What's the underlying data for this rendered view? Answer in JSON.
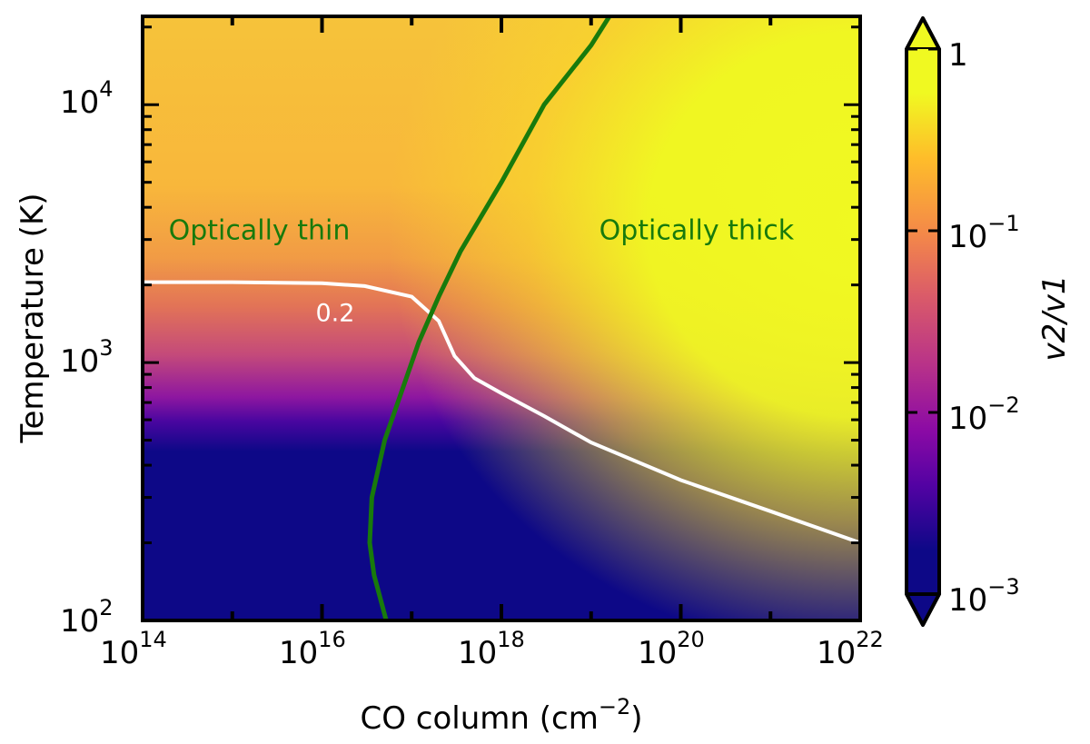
{
  "chart_data": {
    "type": "heatmap",
    "title": "",
    "xlabel": "CO column (cm",
    "xlabel_exponent": "−2",
    "xlabel_close": ")",
    "ylabel": "Temperature (K)",
    "x_scale": "log",
    "y_scale": "log",
    "xlim": [
      100000000000000.0,
      1e+22
    ],
    "ylim": [
      100,
      22000
    ],
    "x_ticks": [
      {
        "value": 100000000000000.0,
        "base": "10",
        "exp": "14"
      },
      {
        "value": 1e+16,
        "base": "10",
        "exp": "16"
      },
      {
        "value": 1e+18,
        "base": "10",
        "exp": "18"
      },
      {
        "value": 1e+20,
        "base": "10",
        "exp": "20"
      },
      {
        "value": 1e+22,
        "base": "10",
        "exp": "22"
      }
    ],
    "y_ticks": [
      {
        "value": 100,
        "base": "10",
        "exp": "2"
      },
      {
        "value": 1000,
        "base": "10",
        "exp": "3"
      },
      {
        "value": 10000,
        "base": "10",
        "exp": "4"
      }
    ],
    "colorbar": {
      "label": "v2/v1",
      "scale": "log",
      "range": [
        0.001,
        1
      ],
      "extend": "both",
      "colormap": "plasma",
      "ticks": [
        {
          "value": 1,
          "text": "1",
          "base": "",
          "exp": ""
        },
        {
          "value": 0.1,
          "text": "",
          "base": "10",
          "exp": "−1"
        },
        {
          "value": 0.01,
          "text": "",
          "base": "10",
          "exp": "−2"
        },
        {
          "value": 0.001,
          "text": "",
          "base": "10",
          "exp": "−3"
        }
      ]
    },
    "contour": {
      "level": 0.2,
      "label": "0.2",
      "color": "#ffffff",
      "points": [
        [
          100000000000000.0,
          2050
        ],
        [
          1000000000000000.0,
          2050
        ],
        [
          1e+16,
          2030
        ],
        [
          3e+16,
          1980
        ],
        [
          1e+17,
          1800
        ],
        [
          2e+17,
          1450
        ],
        [
          3e+17,
          1060
        ],
        [
          5e+17,
          870
        ],
        [
          1e+18,
          760
        ],
        [
          3e+18,
          620
        ],
        [
          1e+19,
          490
        ],
        [
          1e+20,
          350
        ],
        [
          1e+21,
          265
        ],
        [
          1e+22,
          200
        ]
      ]
    },
    "optical_depth_line": {
      "name": "optically thin/thick boundary",
      "color": "#187a0c",
      "points": [
        [
          5.2e+16,
          100
        ],
        [
          3.8e+16,
          150
        ],
        [
          3.4e+16,
          200
        ],
        [
          3.6e+16,
          300
        ],
        [
          5e+16,
          500
        ],
        [
          8e+16,
          800
        ],
        [
          1.2e+17,
          1200
        ],
        [
          2e+17,
          1800
        ],
        [
          3.5e+17,
          2700
        ],
        [
          1e+18,
          5000
        ],
        [
          3e+18,
          10000
        ],
        [
          1e+19,
          17000
        ],
        [
          1.6e+19,
          22000
        ]
      ]
    },
    "annotations": [
      {
        "text": "Optically thin",
        "x": 2000000000000000.0,
        "y": 3000,
        "color": "#187a0c"
      },
      {
        "text": "Optically thick",
        "x": 1.5e+20,
        "y": 3000,
        "color": "#187a0c"
      }
    ]
  }
}
